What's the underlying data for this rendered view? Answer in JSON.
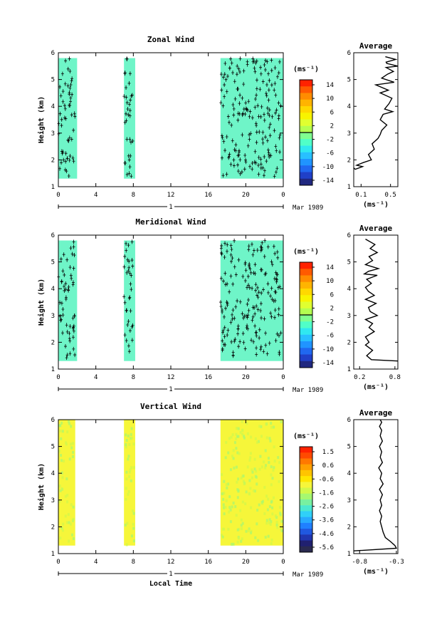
{
  "chart_data": [
    {
      "id": "zonal",
      "type": "heatmap",
      "title": "Zonal Wind",
      "ylabel": "Height (km)",
      "xlabel": "",
      "xticks": [
        "0",
        "4",
        "8",
        "12",
        "16",
        "20",
        "0"
      ],
      "yticks": [
        "1",
        "2",
        "3",
        "4",
        "5",
        "6"
      ],
      "xlim": [
        0,
        24
      ],
      "ylim": [
        1,
        6
      ],
      "day_label": "1",
      "month_label": "Mar 1989",
      "data_blocks": [
        {
          "x": [
            0,
            2
          ],
          "y": [
            1.3,
            5.8
          ]
        },
        {
          "x": [
            7,
            8.2
          ],
          "y": [
            1.3,
            5.8
          ]
        },
        {
          "x": [
            17.3,
            24
          ],
          "y": [
            1.3,
            5.8
          ]
        }
      ],
      "fill_color": "#6ff5c8",
      "colorbar": {
        "unit": "(ms⁻¹)",
        "tick_labels": [
          "14",
          "10",
          "6",
          "2",
          "-2",
          "-6",
          "-10",
          "-14"
        ],
        "colors": [
          "#ff2200",
          "#ff5a00",
          "#ff8c00",
          "#ffb400",
          "#ffd800",
          "#f8f400",
          "#e0ff30",
          "#b4ff50",
          "#80ff90",
          "#50ffc8",
          "#30e8f0",
          "#28c0ff",
          "#2094ff",
          "#2068f0",
          "#2040c8",
          "#202880"
        ]
      },
      "average": {
        "title": "Average",
        "xlabel": "(ms⁻¹)",
        "xticks": [
          "0.1",
          "0.5"
        ],
        "xlim": [
          0,
          0.6
        ],
        "yticks": [
          "1",
          "2",
          "3",
          "4",
          "5",
          "6"
        ],
        "ylim": [
          1,
          6
        ],
        "profile_x": [
          0.0,
          0.02,
          0.12,
          0.04,
          0.13,
          0.24,
          0.2,
          0.28,
          0.25,
          0.33,
          0.36,
          0.38,
          0.45,
          0.36,
          0.4,
          0.53,
          0.42,
          0.48,
          0.52,
          0.36,
          0.47,
          0.3,
          0.55,
          0.38,
          0.46,
          0.54,
          0.44,
          0.6,
          0.45,
          0.44,
          0.57,
          0.43
        ],
        "profile_y": [
          1.7,
          1.65,
          1.75,
          1.8,
          1.9,
          2.0,
          2.2,
          2.4,
          2.6,
          2.8,
          2.95,
          3.1,
          3.3,
          3.5,
          3.7,
          3.8,
          3.9,
          4.1,
          4.3,
          4.5,
          4.6,
          4.8,
          4.9,
          5.05,
          5.2,
          5.3,
          5.45,
          5.5,
          5.6,
          5.65,
          5.75,
          5.85
        ]
      }
    },
    {
      "id": "meridional",
      "type": "heatmap",
      "title": "Meridional Wind",
      "ylabel": "Height (km)",
      "xlabel": "",
      "xticks": [
        "0",
        "4",
        "8",
        "12",
        "16",
        "20",
        "0"
      ],
      "yticks": [
        "1",
        "2",
        "3",
        "4",
        "5",
        "6"
      ],
      "xlim": [
        0,
        24
      ],
      "ylim": [
        1,
        6
      ],
      "day_label": "1",
      "month_label": "Mar 1989",
      "data_blocks": [
        {
          "x": [
            0,
            2
          ],
          "y": [
            1.3,
            5.8
          ]
        },
        {
          "x": [
            7,
            8.2
          ],
          "y": [
            1.3,
            5.8
          ]
        },
        {
          "x": [
            17.3,
            24
          ],
          "y": [
            1.3,
            5.8
          ]
        }
      ],
      "fill_color": "#6ff5c8",
      "colorbar": {
        "unit": "(ms⁻¹)",
        "tick_labels": [
          "14",
          "10",
          "6",
          "2",
          "-2",
          "-6",
          "-10",
          "-14"
        ],
        "colors": [
          "#ff2200",
          "#ff5a00",
          "#ff8c00",
          "#ffb400",
          "#ffd800",
          "#f8f400",
          "#e0ff30",
          "#b4ff50",
          "#80ff90",
          "#50ffc8",
          "#30e8f0",
          "#28c0ff",
          "#2094ff",
          "#2068f0",
          "#2040c8",
          "#202880"
        ]
      },
      "average": {
        "title": "Average",
        "xlabel": "(ms⁻¹)",
        "xticks": [
          "0.2",
          "0.8"
        ],
        "xlim": [
          0.1,
          0.85
        ],
        "yticks": [
          "1",
          "2",
          "3",
          "4",
          "5",
          "6"
        ],
        "ylim": [
          1,
          6
        ],
        "profile_x": [
          0.85,
          0.4,
          0.32,
          0.42,
          0.3,
          0.36,
          0.3,
          0.45,
          0.36,
          0.42,
          0.3,
          0.5,
          0.38,
          0.35,
          0.48,
          0.3,
          0.45,
          0.35,
          0.3,
          0.4,
          0.32,
          0.5,
          0.28,
          0.35,
          0.52,
          0.3,
          0.42,
          0.36,
          0.5,
          0.38,
          0.46,
          0.3
        ],
        "profile_y": [
          1.3,
          1.35,
          1.5,
          1.7,
          1.9,
          2.0,
          2.2,
          2.4,
          2.55,
          2.7,
          2.85,
          3.0,
          3.15,
          3.3,
          3.45,
          3.6,
          3.75,
          3.9,
          4.05,
          4.2,
          4.35,
          4.5,
          4.55,
          4.65,
          4.75,
          4.9,
          5.05,
          5.2,
          5.35,
          5.5,
          5.65,
          5.85
        ]
      }
    },
    {
      "id": "vertical",
      "type": "heatmap",
      "title": "Vertical Wind",
      "ylabel": "Height (km)",
      "xlabel": "Local Time",
      "xticks": [
        "0",
        "4",
        "8",
        "12",
        "16",
        "20",
        "0"
      ],
      "yticks": [
        "1",
        "2",
        "3",
        "4",
        "5",
        "6"
      ],
      "xlim": [
        0,
        24
      ],
      "ylim": [
        1,
        6
      ],
      "day_label": "1",
      "month_label": "Mar 1989",
      "data_blocks": [
        {
          "x": [
            0,
            1.8
          ],
          "y": [
            1.3,
            6.0
          ]
        },
        {
          "x": [
            7,
            8.2
          ],
          "y": [
            1.3,
            6.0
          ]
        },
        {
          "x": [
            17.3,
            24
          ],
          "y": [
            1.3,
            6.0
          ]
        }
      ],
      "fill_color": "#f6f63a",
      "colorbar": {
        "unit": "(ms⁻¹)",
        "tick_labels": [
          "1.5",
          "0.6",
          "-0.6",
          "-1.6",
          "-2.6",
          "-3.6",
          "-4.6",
          "-5.6"
        ],
        "colors": [
          "#ff2200",
          "#ff4a00",
          "#ff7800",
          "#ffa000",
          "#ffc400",
          "#ffe600",
          "#f6f63a",
          "#d2f84a",
          "#a6f870",
          "#78f0a0",
          "#4ce8d0",
          "#30d0f8",
          "#28aaff",
          "#2080ff",
          "#2058e0",
          "#2036b0",
          "#202070",
          "#2a2a50"
        ]
      },
      "average": {
        "title": "Average",
        "xlabel": "(ms⁻¹)",
        "xticks": [
          "-0.8",
          "-0.3"
        ],
        "xlim": [
          -0.88,
          -0.28
        ],
        "yticks": [
          "1",
          "2",
          "3",
          "4",
          "5",
          "6"
        ],
        "ylim": [
          1,
          6
        ],
        "profile_x": [
          -0.88,
          -0.3,
          -0.32,
          -0.38,
          -0.45,
          -0.48,
          -0.5,
          -0.52,
          -0.5,
          -0.53,
          -0.5,
          -0.52,
          -0.49,
          -0.53,
          -0.48,
          -0.52,
          -0.5,
          -0.54,
          -0.49,
          -0.52,
          -0.5,
          -0.53,
          -0.49,
          -0.52,
          -0.5,
          -0.53,
          -0.5,
          -0.52
        ],
        "profile_y": [
          1.1,
          1.2,
          1.3,
          1.45,
          1.6,
          1.8,
          2.0,
          2.2,
          2.4,
          2.6,
          2.8,
          3.0,
          3.2,
          3.4,
          3.6,
          3.8,
          4.0,
          4.2,
          4.4,
          4.6,
          4.8,
          5.0,
          5.2,
          5.4,
          5.6,
          5.75,
          5.9,
          6.0
        ]
      }
    }
  ]
}
